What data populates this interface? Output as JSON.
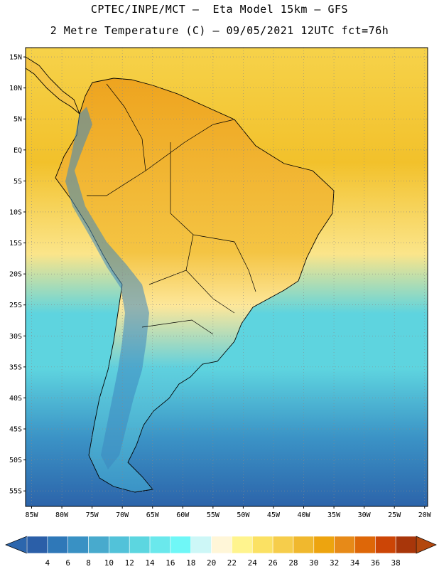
{
  "header": {
    "line1": "CPTEC/INPE/MCT –  Eta Model 15km – GFS",
    "line2": "2 Metre Temperature (C) – 09/05/2021 12UTC fct=76h"
  },
  "axes": {
    "lat_labels": [
      "15N",
      "10N",
      "5N",
      "EQ",
      "5S",
      "10S",
      "15S",
      "20S",
      "25S",
      "30S",
      "35S",
      "40S",
      "45S",
      "50S",
      "55S"
    ],
    "lat_values": [
      15,
      10,
      5,
      0,
      -5,
      -10,
      -15,
      -20,
      -25,
      -30,
      -35,
      -40,
      -45,
      -50,
      -55
    ],
    "lon_labels": [
      "85W",
      "80W",
      "75W",
      "70W",
      "65W",
      "60W",
      "55W",
      "50W",
      "45W",
      "40W",
      "35W",
      "30W",
      "25W",
      "20W"
    ],
    "lon_values": [
      -85,
      -80,
      -75,
      -70,
      -65,
      -60,
      -55,
      -50,
      -45,
      -40,
      -35,
      -30,
      -25,
      -20
    ],
    "lat_range": [
      -57.5,
      16.5
    ],
    "lon_range": [
      -86,
      -19.5
    ]
  },
  "colorbar": {
    "labels": [
      "4",
      "6",
      "8",
      "10",
      "12",
      "14",
      "16",
      "18",
      "20",
      "22",
      "24",
      "26",
      "28",
      "30",
      "32",
      "34",
      "36",
      "38"
    ],
    "colors": [
      "#2b5fa8",
      "#2f78b8",
      "#3991c4",
      "#48aacd",
      "#52c2d9",
      "#5cd6e0",
      "#6ae8ec",
      "#6ff7f7",
      "#cdf7f7",
      "#fff6d8",
      "#fff48e",
      "#fbe163",
      "#f6cd4b",
      "#f0b82e",
      "#eda40f",
      "#e78a18",
      "#de6708",
      "#cc4506",
      "#a8360a"
    ],
    "arrow_left_color": "#2c66ad",
    "arrow_right_color": "#b3470d"
  },
  "map_colors": {
    "ocean_tropical": "#f6d24a",
    "ocean_hot": "#f2c12b",
    "ocean_subtropical": "#fbe58a",
    "ocean_cool": "#5ed4df",
    "ocean_cold": "#3b93c6",
    "ocean_polar": "#2c64aa",
    "land_hot": "#eea41f",
    "land_warm": "#f4c443",
    "land_mild": "#fde79a",
    "land_cool": "#5fd0de",
    "andes": "#3d86c0"
  }
}
